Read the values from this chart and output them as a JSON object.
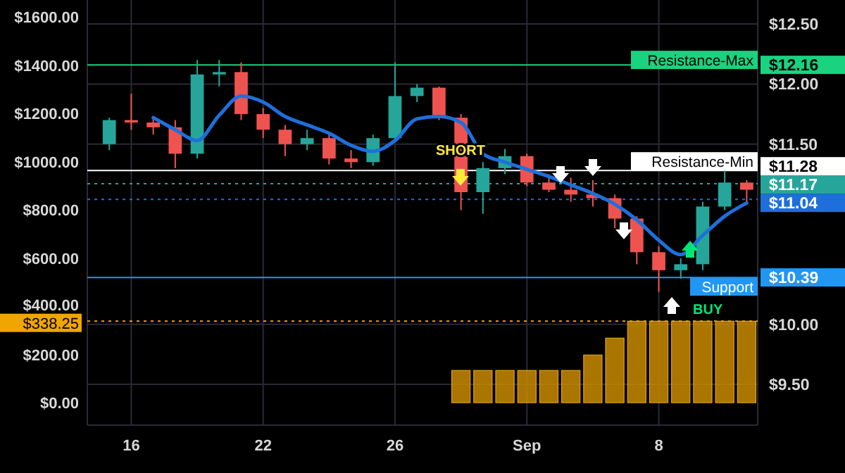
{
  "chart_data": {
    "type": "candlestick",
    "grid": true,
    "categories": [
      null,
      null,
      "16",
      null,
      null,
      null,
      null,
      null,
      "22",
      null,
      null,
      null,
      null,
      null,
      "26",
      null,
      null,
      null,
      null,
      null,
      "Sep",
      null,
      null,
      null,
      null,
      null,
      "8",
      null,
      null,
      null,
      null
    ],
    "ylim": [
      -93,
      1670
    ],
    "yticks": [
      {
        "value": 0,
        "label": "$0.00"
      },
      {
        "value": 200,
        "label": "$200.00"
      },
      {
        "value": 338.25,
        "label": "$338.25"
      },
      {
        "value": 400,
        "label": "$400.00"
      },
      {
        "value": 600,
        "label": "$600.00"
      },
      {
        "value": 800,
        "label": "$800.00"
      },
      {
        "value": 1000,
        "label": "$1000.00"
      },
      {
        "value": 1200,
        "label": "$1200.00"
      },
      {
        "value": 1400,
        "label": "$1400.00"
      },
      {
        "value": 1600,
        "label": "$1600.00"
      }
    ],
    "y2lim": [
      9.16,
      12.7
    ],
    "y2ticks": [
      {
        "value": 9.5,
        "label": "$9.50"
      },
      {
        "value": 10,
        "label": "$10.00"
      },
      {
        "value": 10.39,
        "label": "$10.39"
      },
      {
        "value": 11.04,
        "label": "$11.04"
      },
      {
        "value": 11.17,
        "label": "$11.17"
      },
      {
        "value": 11.28,
        "label": "$11.28"
      },
      {
        "value": 11.5,
        "label": "$11.50"
      },
      {
        "value": 12,
        "label": "$12.00"
      },
      {
        "value": 12.16,
        "label": "$12.16"
      },
      {
        "value": 12.5,
        "label": "$12.50"
      }
    ],
    "series": [
      {
        "type": "bar",
        "axis": "y",
        "color": "#c88a00",
        "values": [
          null,
          null,
          null,
          null,
          null,
          null,
          null,
          null,
          null,
          null,
          null,
          null,
          null,
          null,
          null,
          null,
          null,
          134,
          134,
          134,
          134,
          134,
          134,
          198,
          268,
          338.25,
          338.25,
          338.25,
          338.25,
          338.25,
          338.25
        ]
      },
      {
        "axis": "y2",
        "ohlc": [
          null,
          [
            11.5,
            11.72,
            11.45,
            11.7
          ],
          [
            11.7,
            11.92,
            11.62,
            11.68
          ],
          [
            11.68,
            11.72,
            11.58,
            11.64
          ],
          [
            11.64,
            11.7,
            11.3,
            11.42
          ],
          [
            11.42,
            12.2,
            11.38,
            12.08
          ],
          [
            12.08,
            12.2,
            11.98,
            12.1
          ],
          [
            12.1,
            12.18,
            11.7,
            11.75
          ],
          [
            11.75,
            11.8,
            11.55,
            11.62
          ],
          [
            11.62,
            11.66,
            11.4,
            11.5
          ],
          [
            11.5,
            11.62,
            11.45,
            11.55
          ],
          [
            11.55,
            11.6,
            11.33,
            11.38
          ],
          [
            11.38,
            11.45,
            11.3,
            11.35
          ],
          [
            11.35,
            11.58,
            11.32,
            11.55
          ],
          [
            11.55,
            12.18,
            11.52,
            11.9
          ],
          [
            11.9,
            12.0,
            11.85,
            11.97
          ],
          [
            11.97,
            11.98,
            11.7,
            11.72
          ],
          [
            11.72,
            11.75,
            10.95,
            11.1
          ],
          [
            11.1,
            11.35,
            10.92,
            11.3
          ],
          [
            11.3,
            11.46,
            11.25,
            11.4
          ],
          [
            11.4,
            11.42,
            11.15,
            11.18
          ],
          [
            11.18,
            11.25,
            11.1,
            11.12
          ],
          [
            11.12,
            11.22,
            11.02,
            11.08
          ],
          [
            11.08,
            11.2,
            10.98,
            11.05
          ],
          [
            11.05,
            11.08,
            10.8,
            10.88
          ],
          [
            10.88,
            10.9,
            10.5,
            10.6
          ],
          [
            10.6,
            10.65,
            10.27,
            10.45
          ],
          [
            10.45,
            10.55,
            10.38,
            10.5
          ],
          [
            10.5,
            11.02,
            10.45,
            10.98
          ],
          [
            10.98,
            11.28,
            10.95,
            11.18
          ],
          [
            11.18,
            11.2,
            11.0,
            11.12
          ]
        ],
        "colors": [
          null,
          "#26a69a",
          "#ef5350",
          "#ef5350",
          "#ef5350",
          "#26a69a",
          "#26a69a",
          "#ef5350",
          "#ef5350",
          "#ef5350",
          "#26a69a",
          "#ef5350",
          "#ef5350",
          "#26a69a",
          "#26a69a",
          "#26a69a",
          "#ef5350",
          "#ef5350",
          "#26a69a",
          "#26a69a",
          "#ef5350",
          "#ef5350",
          "#ef5350",
          "#ef5350",
          "#ef5350",
          "#ef5350",
          "#ef5350",
          "#26a69a",
          "#26a69a",
          "#26a69a",
          "#ef5350"
        ]
      },
      {
        "type": "line",
        "axis": "y2",
        "color": "#1e6fdc",
        "values": [
          null,
          null,
          null,
          11.72,
          11.62,
          11.53,
          11.74,
          11.9,
          11.85,
          11.73,
          11.66,
          11.59,
          11.49,
          11.44,
          11.53,
          11.71,
          11.73,
          11.68,
          11.42,
          11.35,
          11.29,
          11.23,
          11.16,
          11.09,
          11.0,
          10.87,
          10.7,
          10.58,
          10.74,
          10.9,
          11.01
        ]
      }
    ],
    "ref_lines": [
      {
        "axis": "y2",
        "value": 12.16,
        "label": "Resistance-Max",
        "color": "#19d37f",
        "line_style": "solid"
      },
      {
        "axis": "y2",
        "value": 11.28,
        "label": "Resistance-Min",
        "color": "#ffffff",
        "line_style": "solid"
      },
      {
        "axis": "y2",
        "value": 11.17,
        "color": "#26a69a",
        "line_style": "dotted"
      },
      {
        "axis": "y2",
        "value": 11.04,
        "color": "#1e6fdc",
        "line_style": "dotted"
      },
      {
        "axis": "y2",
        "value": 10.39,
        "label": "Support",
        "color": "#2196f3",
        "line_style": "solid"
      },
      {
        "axis": "y",
        "value": 338.25,
        "color": "#f0a500",
        "line_style": "dotted"
      }
    ],
    "annotations": [
      "SHORT",
      "BUY"
    ]
  }
}
